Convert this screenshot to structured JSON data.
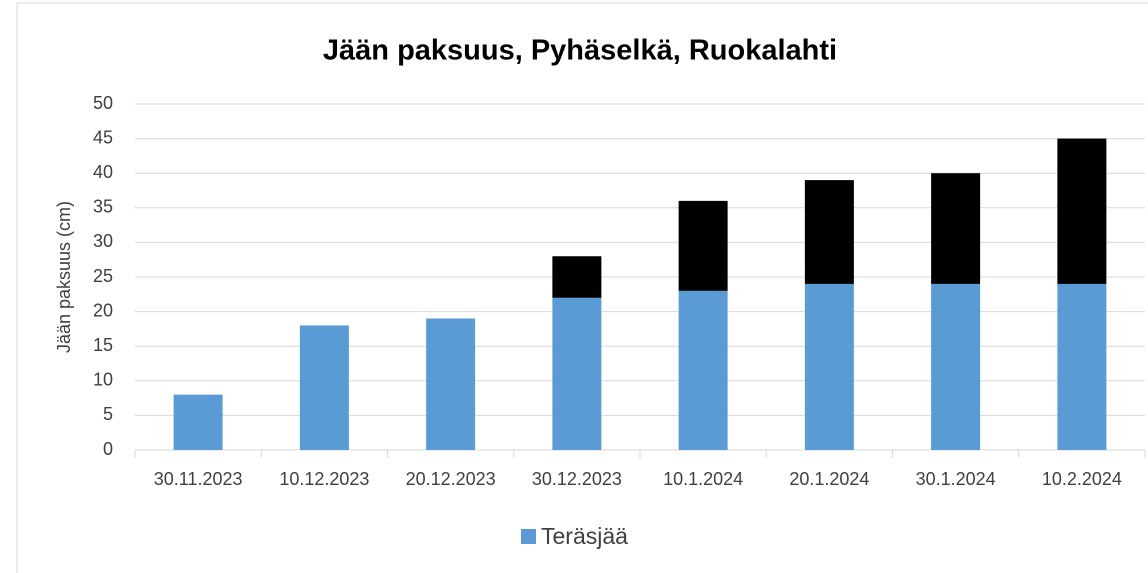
{
  "chart_data": {
    "type": "stacked_bar",
    "title": "Jään paksuus, Pyhäselkä, Ruokalahti",
    "y_label": "Jään paksuus (cm)",
    "categories": [
      "30.11.2023",
      "10.12.2023",
      "20.12.2023",
      "30.12.2023",
      "10.1.2024",
      "20.1.2024",
      "30.1.2024",
      "10.2.2024"
    ],
    "series": [
      {
        "name": "Teräsjää",
        "color": "#5b9bd5",
        "values": [
          8,
          18,
          19,
          22,
          23,
          24,
          24,
          24
        ]
      },
      {
        "color": "#000000",
        "values": [
          null,
          null,
          null,
          6,
          13,
          15,
          16,
          21
        ]
      }
    ],
    "ylim": [
      0,
      50
    ],
    "yticks": [
      0,
      5,
      10,
      15,
      20,
      25,
      30,
      35,
      40,
      45,
      50
    ],
    "grid": true,
    "legend": "bottom"
  }
}
